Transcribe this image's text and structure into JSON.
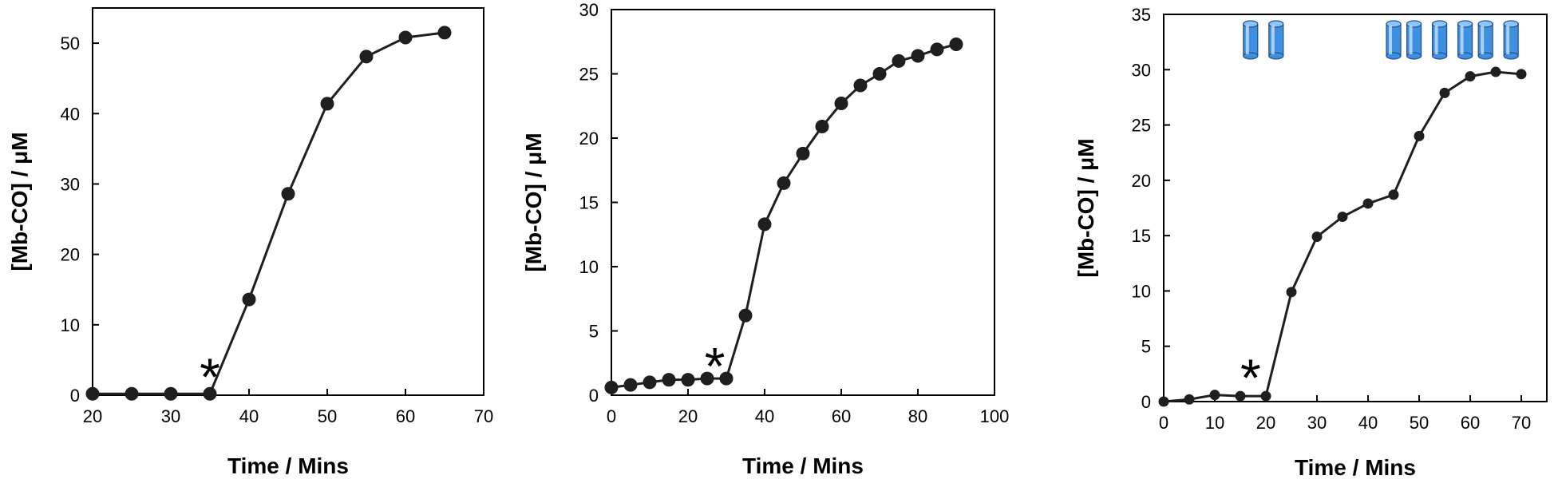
{
  "chart_data": [
    {
      "type": "line",
      "title": "",
      "xlabel": "Time / Mins",
      "ylabel": "[Mb-CO] / μM",
      "xlim": [
        20,
        70
      ],
      "ylim": [
        0,
        55
      ],
      "xticks": [
        20,
        30,
        40,
        50,
        60,
        70
      ],
      "yticks": [
        0,
        10,
        20,
        30,
        40,
        50
      ],
      "grid": false,
      "series": [
        {
          "x": [
            20,
            25,
            30,
            35,
            40,
            45,
            50,
            55,
            60,
            65
          ],
          "y": [
            0.2,
            0.2,
            0.2,
            0.2,
            13.6,
            28.6,
            41.4,
            48.1,
            50.8,
            51.5
          ]
        }
      ],
      "annotations": [
        {
          "text": "*",
          "x": 35,
          "y": 2.5
        }
      ],
      "color": "#1f1f1f"
    },
    {
      "type": "line",
      "title": "",
      "xlabel": "Time / Mins",
      "ylabel": "[Mb-CO] / μM",
      "xlim": [
        0,
        100
      ],
      "ylim": [
        0,
        30
      ],
      "xticks": [
        0,
        20,
        40,
        60,
        80,
        100
      ],
      "yticks": [
        0,
        5,
        10,
        15,
        20,
        25,
        30
      ],
      "grid": false,
      "series": [
        {
          "x": [
            0,
            5,
            10,
            15,
            20,
            25,
            30,
            35,
            40,
            45,
            50,
            55,
            60,
            65,
            70,
            75,
            80,
            85,
            90
          ],
          "y": [
            0.6,
            0.8,
            1.0,
            1.2,
            1.2,
            1.3,
            1.3,
            6.2,
            13.3,
            16.5,
            18.8,
            20.9,
            22.7,
            24.1,
            25.0,
            26.0,
            26.4,
            26.9,
            27.3
          ]
        }
      ],
      "annotations": [
        {
          "text": "*",
          "x": 27,
          "y": 2.2
        }
      ],
      "color": "#1f1f1f"
    },
    {
      "type": "line",
      "title": "",
      "xlabel": "Time / Mins",
      "ylabel": "[Mb-CO] / μM",
      "xlim": [
        0,
        75
      ],
      "ylim": [
        0,
        35
      ],
      "xticks": [
        0,
        10,
        20,
        30,
        40,
        50,
        60,
        70
      ],
      "yticks": [
        0,
        5,
        10,
        15,
        20,
        25,
        30,
        35
      ],
      "grid": false,
      "series": [
        {
          "x": [
            0,
            5,
            10,
            15,
            20,
            25,
            30,
            35,
            40,
            45,
            50,
            55,
            60,
            65,
            70
          ],
          "y": [
            0.0,
            0.2,
            0.6,
            0.5,
            0.5,
            9.9,
            14.9,
            16.7,
            17.9,
            18.7,
            24.0,
            27.9,
            29.4,
            29.8,
            29.6
          ]
        }
      ],
      "annotations": [
        {
          "text": "*",
          "x": 17,
          "y": 2.1
        }
      ],
      "cylinder_markers": {
        "icon": "blue-cylinder-icon",
        "color": "#3f8fe0",
        "x": [
          17,
          22,
          45,
          49,
          54,
          59,
          63,
          68
        ]
      },
      "color": "#1f1f1f"
    }
  ]
}
